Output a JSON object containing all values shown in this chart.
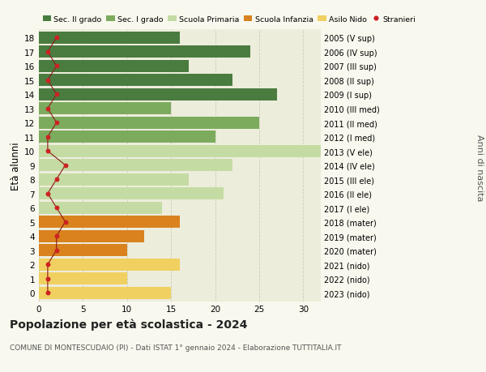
{
  "ages": [
    18,
    17,
    16,
    15,
    14,
    13,
    12,
    11,
    10,
    9,
    8,
    7,
    6,
    5,
    4,
    3,
    2,
    1,
    0
  ],
  "years": [
    "2005 (V sup)",
    "2006 (IV sup)",
    "2007 (III sup)",
    "2008 (II sup)",
    "2009 (I sup)",
    "2010 (III med)",
    "2011 (II med)",
    "2012 (I med)",
    "2013 (V ele)",
    "2014 (IV ele)",
    "2015 (III ele)",
    "2016 (II ele)",
    "2017 (I ele)",
    "2018 (mater)",
    "2019 (mater)",
    "2020 (mater)",
    "2021 (nido)",
    "2022 (nido)",
    "2023 (nido)"
  ],
  "bar_values": [
    16,
    24,
    17,
    22,
    27,
    15,
    25,
    20,
    33,
    22,
    17,
    21,
    14,
    16,
    12,
    10,
    16,
    10,
    15
  ],
  "bar_colors": [
    "#4a7c40",
    "#4a7c40",
    "#4a7c40",
    "#4a7c40",
    "#4a7c40",
    "#7dab5e",
    "#7dab5e",
    "#7dab5e",
    "#c5dba4",
    "#c5dba4",
    "#c5dba4",
    "#c5dba4",
    "#c5dba4",
    "#d9821e",
    "#d9821e",
    "#d9821e",
    "#f0d060",
    "#f0d060",
    "#f0d060"
  ],
  "stranieri_x": [
    2,
    1,
    2,
    1,
    2,
    1,
    2,
    1,
    1,
    3,
    2,
    1,
    2,
    3,
    2,
    2,
    1,
    1,
    1
  ],
  "legend_labels": [
    "Sec. II grado",
    "Sec. I grado",
    "Scuola Primaria",
    "Scuola Infanzia",
    "Asilo Nido",
    "Stranieri"
  ],
  "legend_colors": [
    "#4a7c40",
    "#7dab5e",
    "#c5dba4",
    "#d9821e",
    "#f0d060",
    "#cc2222"
  ],
  "ylabel": "Età alunni",
  "ylabel_right": "Anni di nascita",
  "title": "Popolazione per età scolastica - 2024",
  "subtitle": "COMUNE DI MONTESCUDAIO (PI) - Dati ISTAT 1° gennaio 2024 - Elaborazione TUTTITALIA.IT",
  "xlim": [
    0,
    32
  ],
  "bg_color": "#f8f8ee",
  "bar_bg_color": "#ededdc",
  "grid_color": "#ccccbb"
}
